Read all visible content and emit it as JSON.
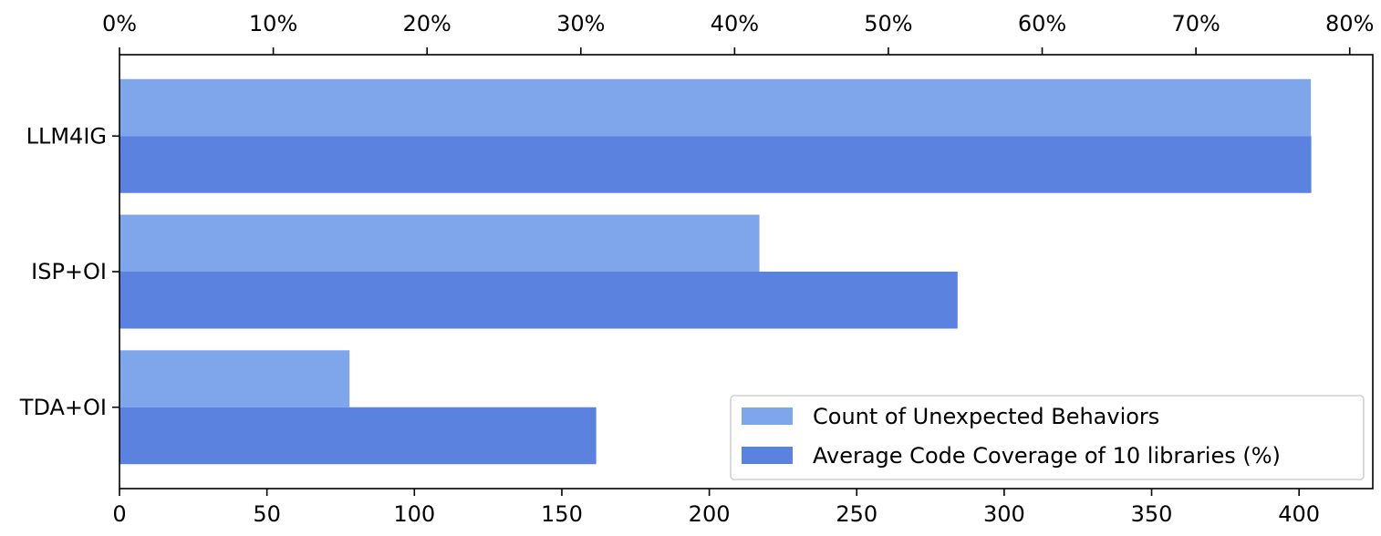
{
  "chart_data": {
    "type": "bar",
    "orientation": "horizontal",
    "categories": [
      "LLM4IG",
      "ISP+OI",
      "TDA+OI"
    ],
    "series": [
      {
        "name": "Count of Unexpected Behaviors",
        "axis": "bottom",
        "values": [
          404,
          217,
          78
        ],
        "color": "#7fa6ea"
      },
      {
        "name": "Average Code Coverage of 10 libraries (%)",
        "axis": "top",
        "values": [
          77.5,
          54.5,
          31.0
        ],
        "color": "#5b82df"
      }
    ],
    "x_bottom": {
      "lim": [
        0,
        425
      ],
      "ticks": [
        0,
        50,
        100,
        150,
        200,
        250,
        300,
        350,
        400
      ],
      "tick_labels": [
        "0",
        "50",
        "100",
        "150",
        "200",
        "250",
        "300",
        "350",
        "400"
      ]
    },
    "x_top": {
      "lim": [
        0,
        81.5
      ],
      "ticks": [
        0,
        10,
        20,
        30,
        40,
        50,
        60,
        70,
        80
      ],
      "tick_labels": [
        "0%",
        "10%",
        "20%",
        "30%",
        "40%",
        "50%",
        "60%",
        "70%",
        "80%"
      ]
    },
    "legend_position": "bottom-right",
    "grid": false,
    "title": "",
    "xlabel": "",
    "ylabel": ""
  }
}
